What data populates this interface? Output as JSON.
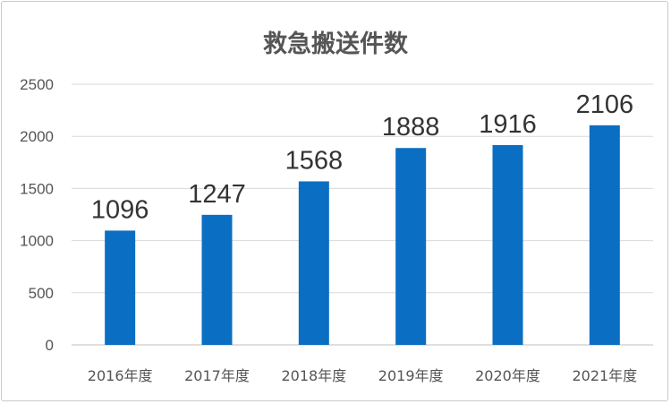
{
  "chart_data": {
    "type": "bar",
    "title": "救急搬送件数",
    "categories": [
      "2016年度",
      "2017年度",
      "2018年度",
      "2019年度",
      "2020年度",
      "2021年度"
    ],
    "values": [
      1096,
      1247,
      1568,
      1888,
      1916,
      2106
    ],
    "yticks": [
      "0",
      "500",
      "1000",
      "1500",
      "2000",
      "2500"
    ],
    "ylim": [
      0,
      2500
    ],
    "grid": true,
    "legend": "none",
    "bar_color": "#0a6fc2"
  }
}
